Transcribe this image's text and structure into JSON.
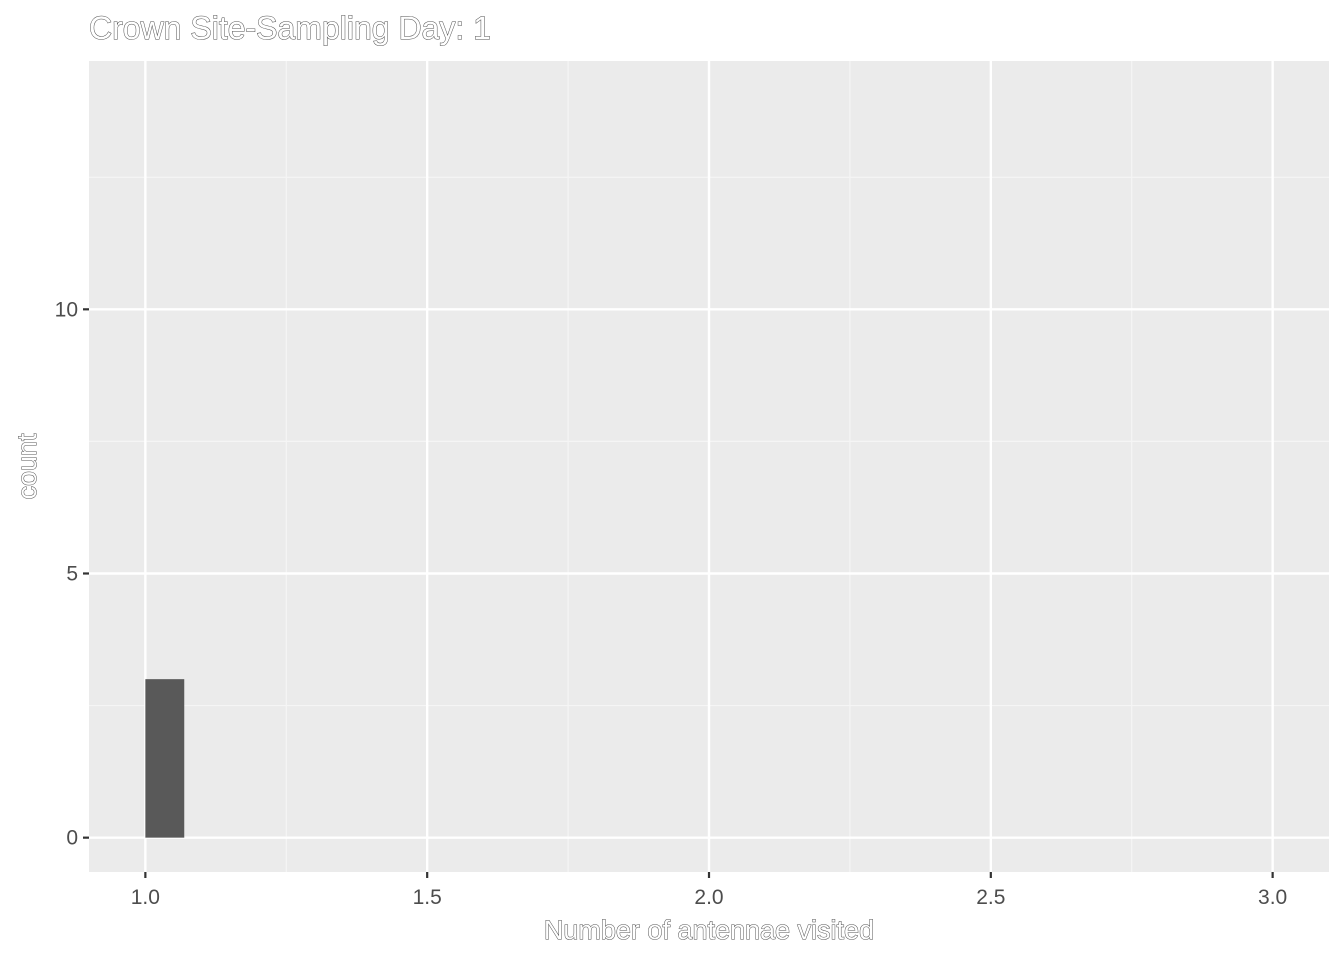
{
  "chart_data": {
    "type": "bar",
    "title": "Crown Site-Sampling Day: 1",
    "xlabel": "Number of antennae visited",
    "ylabel": "count",
    "xlim": [
      0.9,
      3.1
    ],
    "ylim": [
      -0.65,
      14.7
    ],
    "x_ticks": [
      {
        "value": 1.0,
        "label": "1.0"
      },
      {
        "value": 1.5,
        "label": "1.5"
      },
      {
        "value": 2.0,
        "label": "2.0"
      },
      {
        "value": 2.5,
        "label": "2.5"
      },
      {
        "value": 3.0,
        "label": "3.0"
      }
    ],
    "x_minor_ticks": [
      1.25,
      1.75,
      2.25,
      2.75
    ],
    "y_ticks": [
      {
        "value": 0,
        "label": "0"
      },
      {
        "value": 5,
        "label": "5"
      },
      {
        "value": 10,
        "label": "10"
      }
    ],
    "y_minor_ticks": [
      2.5,
      7.5,
      12.5
    ],
    "bars": [
      {
        "x_start": 1.0,
        "x_end": 1.069,
        "count": 3
      }
    ],
    "grid": true,
    "legend": "none",
    "colors": {
      "panel_background": "#ebebeb",
      "grid_major": "#ffffff",
      "grid_minor": "#f5f5f5",
      "bar_fill": "#595959",
      "tick_color": "#333333"
    }
  }
}
